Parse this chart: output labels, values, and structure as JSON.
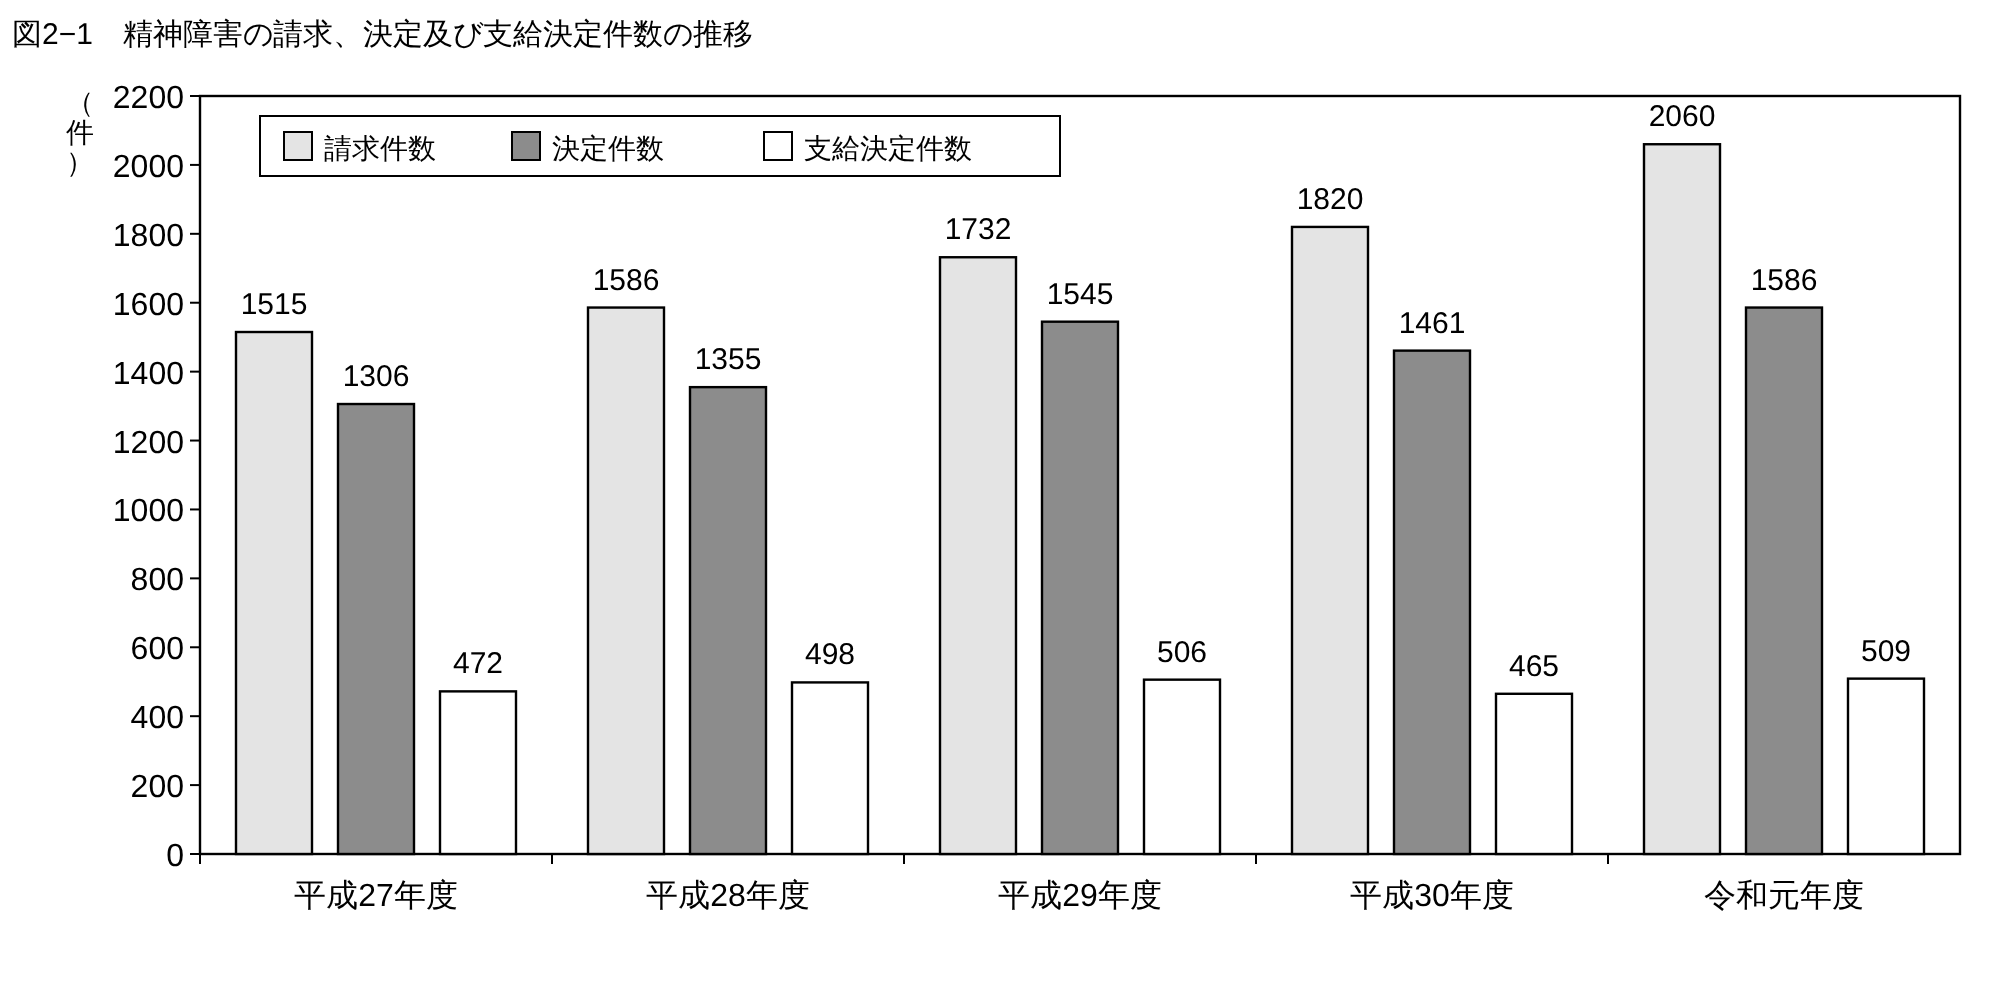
{
  "chart_data": {
    "type": "bar",
    "title": "図2−1　精神障害の請求、決定及び支給決定件数の推移",
    "ylabel": "（件）",
    "categories": [
      "平成27年度",
      "平成28年度",
      "平成29年度",
      "平成30年度",
      "令和元年度"
    ],
    "series": [
      {
        "name": "請求件数",
        "color": "#e4e4e4",
        "values": [
          1515,
          1586,
          1732,
          1820,
          2060
        ]
      },
      {
        "name": "決定件数",
        "color": "#8c8c8c",
        "values": [
          1306,
          1355,
          1545,
          1461,
          1586
        ]
      },
      {
        "name": "支給決定件数",
        "color": "#ffffff",
        "values": [
          472,
          498,
          506,
          465,
          509
        ]
      }
    ],
    "ylim": [
      0,
      2200
    ],
    "yticks": [
      0,
      200,
      400,
      600,
      800,
      1000,
      1200,
      1400,
      1600,
      1800,
      2000,
      2200
    ],
    "data_labels": true,
    "legend": "top left",
    "grid": false
  }
}
